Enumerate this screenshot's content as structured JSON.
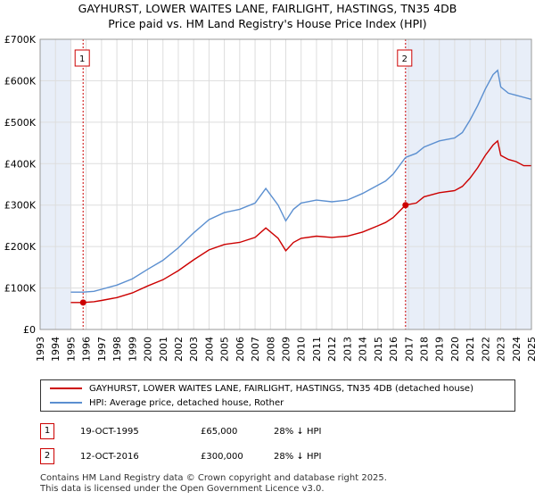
{
  "chart_data": {
    "type": "line",
    "title": "GAYHURST, LOWER WAITES LANE, FAIRLIGHT, HASTINGS, TN35 4DB",
    "subtitle": "Price paid vs. HM Land Registry's House Price Index (HPI)",
    "xlim": [
      1993,
      2025
    ],
    "ylim": [
      0,
      700000
    ],
    "x_ticks": [
      "1993",
      "1994",
      "1995",
      "1996",
      "1997",
      "1998",
      "1999",
      "2000",
      "2001",
      "2002",
      "2003",
      "2004",
      "2005",
      "2006",
      "2007",
      "2008",
      "2009",
      "2010",
      "2011",
      "2012",
      "2013",
      "2014",
      "2015",
      "2016",
      "2017",
      "2018",
      "2019",
      "2020",
      "2021",
      "2022",
      "2023",
      "2024",
      "2025"
    ],
    "y_ticks": [
      {
        "value": 0,
        "label": "£0"
      },
      {
        "value": 100000,
        "label": "£100K"
      },
      {
        "value": 200000,
        "label": "£200K"
      },
      {
        "value": 300000,
        "label": "£300K"
      },
      {
        "value": 400000,
        "label": "£400K"
      },
      {
        "value": 500000,
        "label": "£500K"
      },
      {
        "value": 600000,
        "label": "£600K"
      },
      {
        "value": 700000,
        "label": "£700K"
      }
    ],
    "grid": true,
    "shaded_ranges": [
      [
        1993,
        1995.0
      ],
      [
        2016.8,
        2025
      ]
    ],
    "series": [
      {
        "name": "GAYHURST, LOWER WAITES LANE, FAIRLIGHT, HASTINGS, TN35 4DB (detached house)",
        "color": "#cc0000",
        "x": [
          1995.0,
          1995.8,
          1996.5,
          1997.0,
          1998.0,
          1999.0,
          2000.0,
          2001.0,
          2002.0,
          2003.0,
          2004.0,
          2005.0,
          2006.0,
          2007.0,
          2007.7,
          2008.5,
          2009.0,
          2009.5,
          2010.0,
          2011.0,
          2012.0,
          2013.0,
          2014.0,
          2015.0,
          2015.5,
          2016.0,
          2016.8,
          2017.5,
          2018.0,
          2019.0,
          2020.0,
          2020.5,
          2021.0,
          2021.5,
          2022.0,
          2022.5,
          2022.8,
          2023.0,
          2023.5,
          2024.0,
          2024.5,
          2025.0
        ],
        "y": [
          65000,
          65000,
          67000,
          70000,
          77000,
          88000,
          105000,
          120000,
          142000,
          168000,
          192000,
          205000,
          210000,
          222000,
          245000,
          220000,
          190000,
          210000,
          220000,
          225000,
          222000,
          225000,
          235000,
          250000,
          258000,
          270000,
          300000,
          305000,
          320000,
          330000,
          335000,
          345000,
          365000,
          390000,
          420000,
          445000,
          455000,
          420000,
          410000,
          405000,
          395000,
          395000
        ]
      },
      {
        "name": "HPI: Average price, detached house, Rother",
        "color": "#5b8fd0",
        "x": [
          1995.0,
          1995.8,
          1996.5,
          1997.0,
          1998.0,
          1999.0,
          2000.0,
          2001.0,
          2002.0,
          2003.0,
          2004.0,
          2005.0,
          2006.0,
          2007.0,
          2007.7,
          2008.5,
          2009.0,
          2009.5,
          2010.0,
          2011.0,
          2012.0,
          2013.0,
          2014.0,
          2015.0,
          2015.5,
          2016.0,
          2016.8,
          2017.5,
          2018.0,
          2019.0,
          2020.0,
          2020.5,
          2021.0,
          2021.5,
          2022.0,
          2022.5,
          2022.8,
          2023.0,
          2023.5,
          2024.0,
          2024.5,
          2025.0
        ],
        "y": [
          90000,
          90000,
          92000,
          97000,
          107000,
          122000,
          145000,
          167000,
          197000,
          233000,
          265000,
          282000,
          290000,
          305000,
          340000,
          300000,
          262000,
          290000,
          305000,
          312000,
          308000,
          312000,
          328000,
          348000,
          358000,
          375000,
          415000,
          425000,
          440000,
          455000,
          462000,
          475000,
          505000,
          540000,
          580000,
          615000,
          625000,
          585000,
          570000,
          565000,
          560000,
          555000
        ]
      }
    ],
    "markers": [
      {
        "label": "1",
        "x": 1995.8,
        "y": 65000
      },
      {
        "label": "2",
        "x": 2016.8,
        "y": 300000
      }
    ]
  },
  "legend": {
    "property_label": "GAYHURST, LOWER WAITES LANE, FAIRLIGHT, HASTINGS, TN35 4DB (detached house)",
    "hpi_label": "HPI: Average price, detached house, Rother"
  },
  "transactions": [
    {
      "badge": "1",
      "date": "19-OCT-1995",
      "price": "£65,000",
      "hpi": "28% ↓ HPI"
    },
    {
      "badge": "2",
      "date": "12-OCT-2016",
      "price": "£300,000",
      "hpi": "28% ↓ HPI"
    }
  ],
  "footer": {
    "line1": "Contains HM Land Registry data © Crown copyright and database right 2025.",
    "line2": "This data is licensed under the Open Government Licence v3.0."
  },
  "colors": {
    "property": "#cc0000",
    "hpi": "#5b8fd0",
    "shade": "#e8eef8",
    "plot_bg": "#ffffff",
    "grid": "#dddddd"
  }
}
